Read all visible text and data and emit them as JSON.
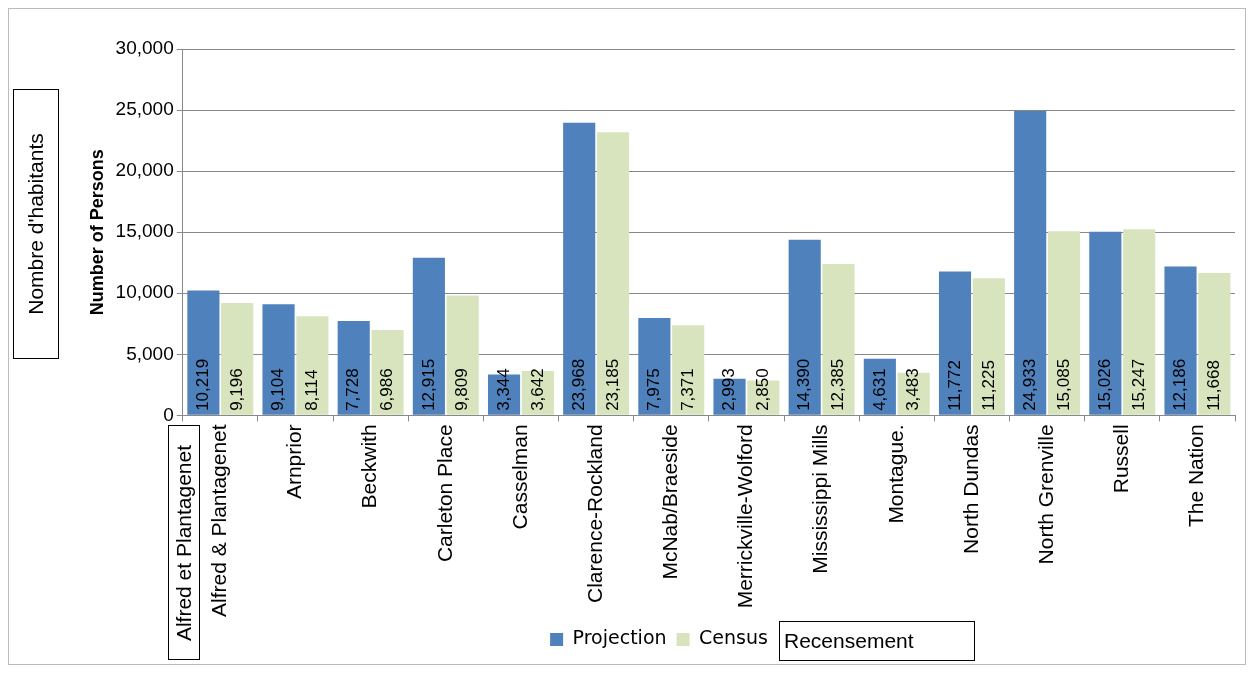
{
  "chart_data": {
    "type": "bar",
    "ylabel": "Number of Persons",
    "categories": [
      "Alfred & Plantagenet",
      "Arnprior",
      "Beckwith",
      "Carleton Place",
      "Casselman",
      "Clarence-Rockland",
      "McNab/Braeside",
      "Merrickville-Wolford",
      "Mississippi Mills",
      "Montague.",
      "North Dundas",
      "North Grenville",
      "Russell",
      "The Nation"
    ],
    "series": [
      {
        "name": "Projection",
        "color": "#4f81bd",
        "values": [
          10219,
          9104,
          7728,
          12915,
          3344,
          23968,
          7975,
          2993,
          14390,
          4631,
          11772,
          24933,
          15026,
          12186
        ],
        "value_labels": [
          "10,219",
          "9,104",
          "7,728",
          "12,915",
          "3,344",
          "23,968",
          "7,975",
          "2,993",
          "14,390",
          "4,631",
          "11,772",
          "24,933",
          "15,026",
          "12,186"
        ]
      },
      {
        "name": "Census",
        "color": "#d7e4bd",
        "values": [
          9196,
          8114,
          6986,
          9809,
          3642,
          23185,
          7371,
          2850,
          12385,
          3483,
          11225,
          15085,
          15247,
          11668
        ],
        "value_labels": [
          "9,196",
          "8,114",
          "6,986",
          "9,809",
          "3,642",
          "23,185",
          "7,371",
          "2,850",
          "12,385",
          "3,483",
          "11,225",
          "15,085",
          "15,247",
          "11,668"
        ]
      }
    ],
    "ylim": [
      0,
      30000
    ],
    "yticks": [
      {
        "value": 0,
        "label": "0"
      },
      {
        "value": 5000,
        "label": "5,000"
      },
      {
        "value": 10000,
        "label": "10,000"
      },
      {
        "value": 15000,
        "label": "15,000"
      },
      {
        "value": 20000,
        "label": "20,000"
      },
      {
        "value": 25000,
        "label": "25,000"
      },
      {
        "value": 30000,
        "label": "30,000"
      }
    ],
    "grid": "y",
    "legend": "bottom",
    "annotations": [
      "Nombre d'habitants",
      "Alfred et Plantagenet",
      "Recensement"
    ]
  }
}
